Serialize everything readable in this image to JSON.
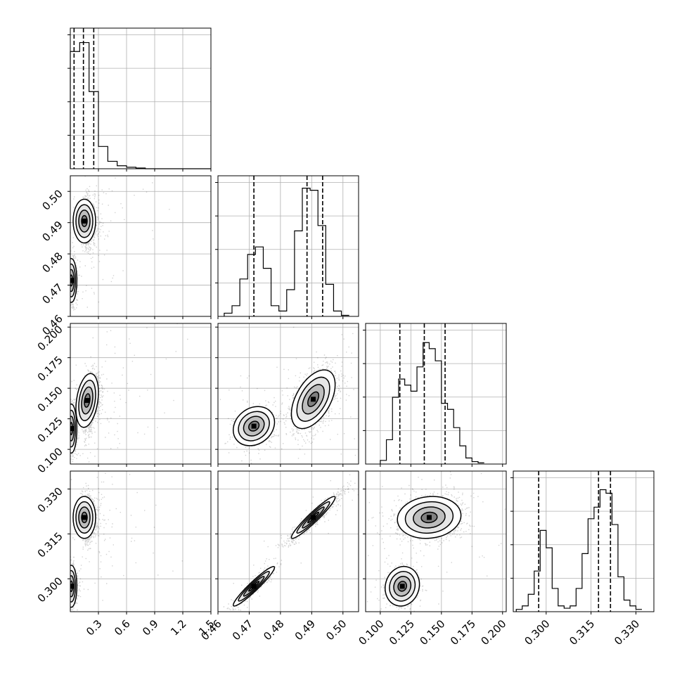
{
  "chart_data": {
    "type": "corner",
    "grid": true,
    "variables": [
      {
        "id": "p1",
        "range": [
          0,
          1.5
        ],
        "ticks": [
          {
            "v": 0.3,
            "label": "0.3"
          },
          {
            "v": 0.6,
            "label": "0.6"
          },
          {
            "v": 0.9,
            "label": "0.9"
          },
          {
            "v": 1.2,
            "label": "1.2"
          },
          {
            "v": 1.5,
            "label": "1.5"
          }
        ]
      },
      {
        "id": "p2",
        "range": [
          0.46,
          0.505
        ],
        "ticks": [
          {
            "v": 0.46,
            "label": "0.46"
          },
          {
            "v": 0.47,
            "label": "0.47"
          },
          {
            "v": 0.48,
            "label": "0.48"
          },
          {
            "v": 0.49,
            "label": "0.49"
          },
          {
            "v": 0.5,
            "label": "0.50"
          }
        ]
      },
      {
        "id": "p3",
        "range": [
          0.088,
          0.203
        ],
        "ticks": [
          {
            "v": 0.1,
            "label": "0.100"
          },
          {
            "v": 0.125,
            "label": "0.125"
          },
          {
            "v": 0.15,
            "label": "0.150"
          },
          {
            "v": 0.175,
            "label": "0.175"
          },
          {
            "v": 0.2,
            "label": "0.200"
          }
        ]
      },
      {
        "id": "p4",
        "range": [
          0.289,
          0.336
        ],
        "ticks": [
          {
            "v": 0.3,
            "label": "0.300"
          },
          {
            "v": 0.315,
            "label": "0.315"
          },
          {
            "v": 0.33,
            "label": "0.330"
          }
        ]
      }
    ],
    "histograms": [
      {
        "var": 0,
        "quantiles": [
          0.04,
          0.14,
          0.25
        ],
        "edges": [
          0,
          0.1,
          0.2,
          0.3,
          0.4,
          0.5,
          0.6,
          0.7,
          0.8,
          0.9,
          1.0,
          1.1,
          1.2,
          1.3,
          1.4,
          1.5
        ],
        "counts": [
          0.79,
          0.85,
          0.52,
          0.15,
          0.05,
          0.02,
          0.01,
          0.005,
          0.0,
          0.0,
          0.0,
          0.0,
          0.0,
          0.0,
          0.0
        ],
        "ymax": 0.9
      },
      {
        "var": 1,
        "quantiles": [
          0.4715,
          0.4885,
          0.4935
        ],
        "edges": [
          0.462,
          0.4645,
          0.467,
          0.4695,
          0.472,
          0.4745,
          0.477,
          0.4795,
          0.482,
          0.4845,
          0.487,
          0.4895,
          0.492,
          0.4945,
          0.497,
          0.4995,
          0.502
        ],
        "counts": [
          0.03,
          0.1,
          0.35,
          0.58,
          0.65,
          0.45,
          0.1,
          0.05,
          0.25,
          0.8,
          1.2,
          1.18,
          0.85,
          0.3,
          0.05,
          0.01
        ],
        "ymax": 1.25
      },
      {
        "var": 2,
        "quantiles": [
          0.116,
          0.136,
          0.153
        ],
        "edges": [
          0.1,
          0.105,
          0.11,
          0.115,
          0.12,
          0.125,
          0.13,
          0.135,
          0.14,
          0.145,
          0.15,
          0.155,
          0.16,
          0.165,
          0.17,
          0.175,
          0.18,
          0.185
        ],
        "counts": [
          0.03,
          0.2,
          0.55,
          0.7,
          0.65,
          0.6,
          0.8,
          1.0,
          0.95,
          0.85,
          0.5,
          0.45,
          0.3,
          0.15,
          0.05,
          0.02,
          0.01
        ],
        "ymax": 1.1
      },
      {
        "var": 3,
        "quantiles": [
          0.2975,
          0.3175,
          0.3215
        ],
        "edges": [
          0.29,
          0.292,
          0.294,
          0.296,
          0.298,
          0.3,
          0.302,
          0.304,
          0.306,
          0.308,
          0.31,
          0.312,
          0.314,
          0.316,
          0.318,
          0.32,
          0.322,
          0.324,
          0.326,
          0.328,
          0.33,
          0.332
        ],
        "counts": [
          0.02,
          0.05,
          0.15,
          0.35,
          0.7,
          0.55,
          0.2,
          0.05,
          0.03,
          0.05,
          0.2,
          0.5,
          0.8,
          0.9,
          1.05,
          1.02,
          0.75,
          0.3,
          0.1,
          0.05,
          0.02
        ],
        "ymax": 1.15
      }
    ],
    "pairs": [
      {
        "row": 1,
        "col": 0,
        "modes": [
          {
            "cx": 0.15,
            "cy": 0.4905,
            "sx": 0.06,
            "sy": 0.0035,
            "rho": 0.0,
            "w": 0.7
          },
          {
            "cx": 0.01,
            "cy": 0.4715,
            "sx": 0.03,
            "sy": 0.0035,
            "rho": 0.0,
            "w": 0.3
          }
        ]
      },
      {
        "row": 2,
        "col": 0,
        "modes": [
          {
            "cx": 0.18,
            "cy": 0.14,
            "sx": 0.06,
            "sy": 0.011,
            "rho": 0.3,
            "w": 0.7
          },
          {
            "cx": 0.01,
            "cy": 0.117,
            "sx": 0.03,
            "sy": 0.01,
            "rho": 0.0,
            "w": 0.3
          }
        ]
      },
      {
        "row": 3,
        "col": 0,
        "modes": [
          {
            "cx": 0.15,
            "cy": 0.3205,
            "sx": 0.06,
            "sy": 0.0035,
            "rho": 0.0,
            "w": 0.7
          },
          {
            "cx": 0.01,
            "cy": 0.2975,
            "sx": 0.03,
            "sy": 0.0035,
            "rho": 0.0,
            "w": 0.3
          }
        ]
      },
      {
        "row": 2,
        "col": 1,
        "modes": [
          {
            "cx": 0.4905,
            "cy": 0.141,
            "sx": 0.0035,
            "sy": 0.012,
            "rho": 0.5,
            "w": 0.7
          },
          {
            "cx": 0.4715,
            "cy": 0.119,
            "sx": 0.0033,
            "sy": 0.008,
            "rho": 0.2,
            "w": 0.3
          }
        ]
      },
      {
        "row": 3,
        "col": 1,
        "modes": [
          {
            "cx": 0.4905,
            "cy": 0.3205,
            "sx": 0.0035,
            "sy": 0.0035,
            "rho": 0.95,
            "w": 0.7
          },
          {
            "cx": 0.4715,
            "cy": 0.2975,
            "sx": 0.0033,
            "sy": 0.0033,
            "rho": 0.95,
            "w": 0.3
          }
        ]
      },
      {
        "row": 3,
        "col": 2,
        "modes": [
          {
            "cx": 0.14,
            "cy": 0.3205,
            "sx": 0.013,
            "sy": 0.0035,
            "rho": 0.1,
            "w": 0.7
          },
          {
            "cx": 0.118,
            "cy": 0.2975,
            "sx": 0.007,
            "sy": 0.0033,
            "rho": 0.1,
            "w": 0.3
          }
        ]
      }
    ],
    "contour_levels_sigma": [
      0.5,
      1.0,
      1.5,
      2.0
    ]
  }
}
